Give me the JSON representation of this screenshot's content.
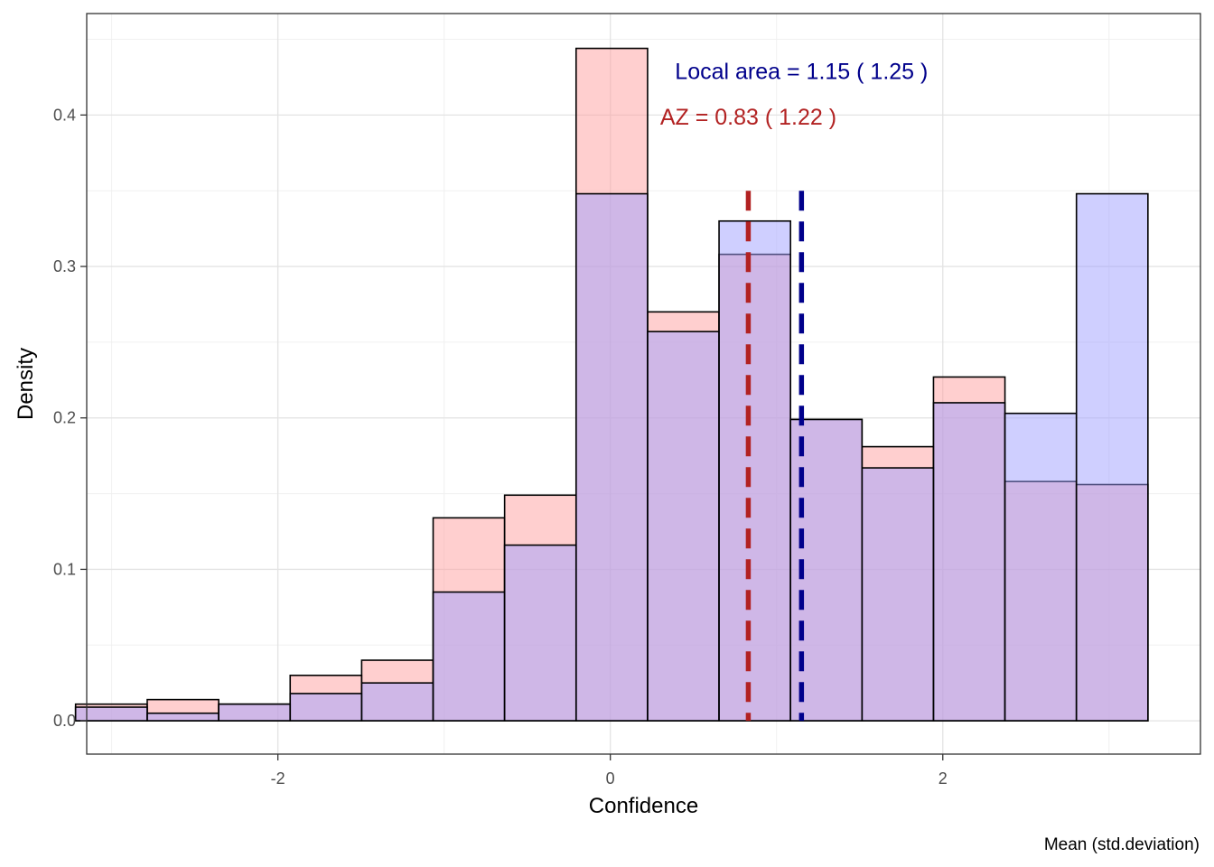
{
  "chart_data": {
    "type": "histogram",
    "xlabel": "Confidence",
    "ylabel": "Density",
    "caption": "Mean (std.deviation)",
    "xlim": [
      -3.15,
      3.55
    ],
    "ylim": [
      -0.022,
      0.467
    ],
    "x_ticks": [
      -2,
      0,
      2
    ],
    "x_tick_labels": [
      "-2",
      "0",
      "2"
    ],
    "y_ticks": [
      0.0,
      0.1,
      0.2,
      0.3,
      0.4
    ],
    "y_tick_labels": [
      "0.0",
      "0.1",
      "0.2",
      "0.3",
      "0.4"
    ],
    "grid": true,
    "bin_edges": [
      -3.217,
      -2.786,
      -2.356,
      -1.926,
      -1.496,
      -1.066,
      -0.636,
      -0.206,
      0.224,
      0.654,
      1.084,
      1.514,
      1.944,
      2.374,
      2.804,
      3.234
    ],
    "series": [
      {
        "key": "az",
        "color": "#b22222",
        "fill": "#ff9f9f",
        "values": [
          0.011,
          0.014,
          0.011,
          0.03,
          0.04,
          0.134,
          0.149,
          0.444,
          0.27,
          0.308,
          0.199,
          0.181,
          0.227,
          0.158,
          0.156
        ],
        "mean": 0.83
      },
      {
        "key": "local",
        "color": "#00008b",
        "fill": "#9f9fff",
        "values": [
          0.009,
          0.005,
          0.011,
          0.018,
          0.025,
          0.085,
          0.116,
          0.348,
          0.257,
          0.33,
          0.199,
          0.167,
          0.21,
          0.203,
          0.348
        ],
        "mean": 1.15
      }
    ],
    "annotations": [
      {
        "text": "Local area = 1.15 ( 1.25 )",
        "color": "#00008b",
        "x": 1.15,
        "y": 0.429
      },
      {
        "text": "AZ = 0.83 ( 1.22 )",
        "color": "#b22222",
        "x": 0.83,
        "y": 0.399
      }
    ]
  }
}
